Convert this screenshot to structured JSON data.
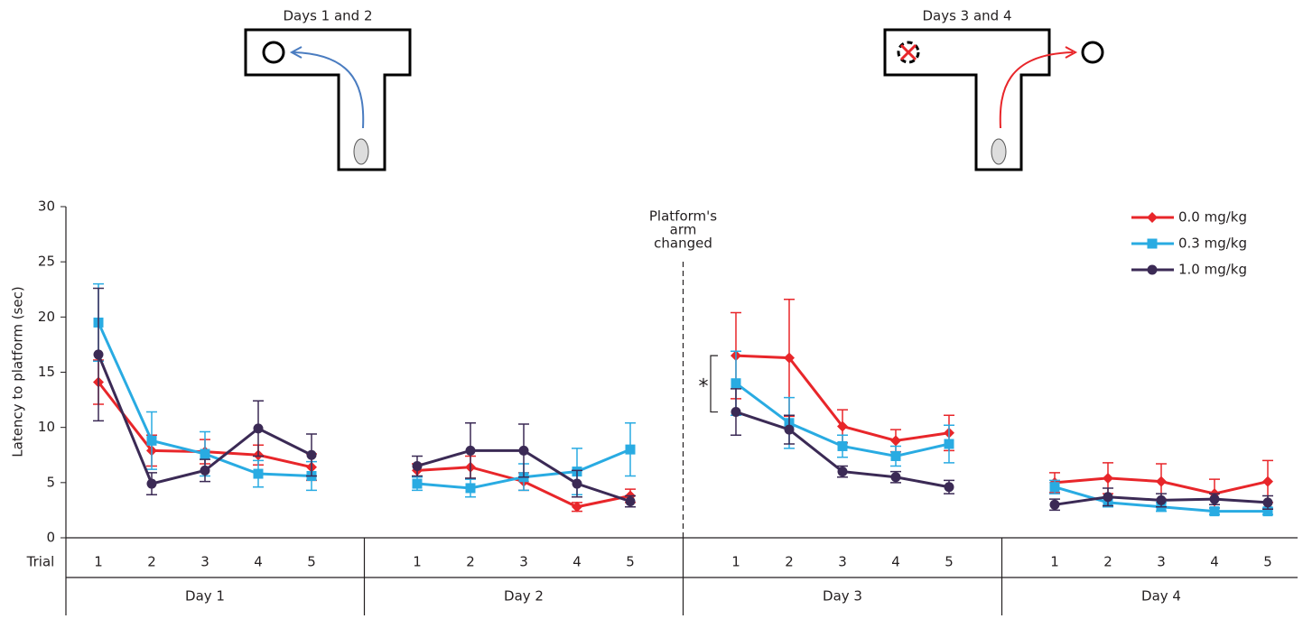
{
  "chart_data": {
    "type": "line",
    "ylabel": "Latency to platform (sec)",
    "xlabel": "Trial",
    "categories": [
      "1",
      "2",
      "3",
      "4",
      "5",
      "1",
      "2",
      "3",
      "4",
      "5",
      "1",
      "2",
      "3",
      "4",
      "5",
      "1",
      "2",
      "3",
      "4",
      "5"
    ],
    "groups": [
      "Day 1",
      "Day 2",
      "Day 3",
      "Day 4"
    ],
    "ylim": [
      0,
      30
    ],
    "yticks": [
      0,
      5,
      10,
      15,
      20,
      25,
      30
    ],
    "legend": "upper right",
    "series": [
      {
        "name": "0.0 mg/kg",
        "color": "#e8262a",
        "marker": "diamond",
        "values": [
          14.1,
          7.9,
          7.8,
          7.5,
          6.4,
          6.1,
          6.4,
          5.1,
          2.8,
          3.8,
          16.5,
          16.3,
          10.1,
          8.8,
          9.5,
          5.0,
          5.4,
          5.1,
          4.0,
          5.1
        ],
        "errors": [
          2.0,
          1.4,
          1.1,
          0.9,
          1.2,
          0.6,
          1.0,
          0.8,
          0.4,
          0.6,
          3.9,
          5.3,
          1.5,
          1.0,
          1.6,
          0.9,
          1.4,
          1.6,
          1.3,
          1.9
        ]
      },
      {
        "name": "0.3 mg/kg",
        "color": "#29abe2",
        "marker": "square",
        "values": [
          19.5,
          8.8,
          7.6,
          5.8,
          5.6,
          4.9,
          4.5,
          5.5,
          6.0,
          8.0,
          14.0,
          10.4,
          8.3,
          7.4,
          8.5,
          4.6,
          3.2,
          2.8,
          2.4,
          2.4
        ],
        "errors": [
          3.5,
          2.6,
          2.0,
          1.2,
          1.3,
          0.6,
          0.8,
          1.2,
          2.1,
          2.4,
          2.9,
          2.3,
          1.0,
          0.9,
          1.7,
          0.6,
          0.4,
          0.4,
          0.3,
          0.3
        ]
      },
      {
        "name": "1.0 mg/kg",
        "color": "#3b2a55",
        "marker": "circle",
        "values": [
          16.6,
          4.9,
          6.1,
          9.9,
          7.5,
          6.5,
          7.9,
          7.9,
          4.9,
          3.3,
          11.4,
          9.8,
          6.0,
          5.5,
          4.6,
          3.0,
          3.7,
          3.4,
          3.5,
          3.2
        ],
        "errors": [
          6.0,
          1.0,
          1.0,
          2.5,
          1.9,
          0.9,
          2.5,
          2.4,
          1.2,
          0.5,
          2.1,
          1.3,
          0.5,
          0.5,
          0.6,
          0.5,
          0.8,
          0.6,
          0.5,
          0.6
        ]
      }
    ],
    "annotations": [
      {
        "lines": [
          "Platform's",
          "arm",
          "changed"
        ]
      },
      {
        "text": "*"
      }
    ]
  },
  "panels": [
    {
      "title": "Days 1 and 2"
    },
    {
      "title": "Days 3 and 4"
    }
  ]
}
